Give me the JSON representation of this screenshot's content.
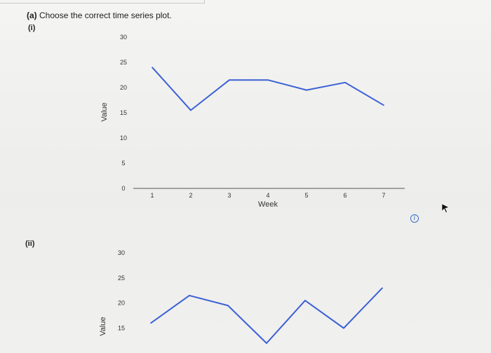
{
  "question": {
    "part_tag": "(a)",
    "text": "Choose the correct time series plot."
  },
  "options": [
    {
      "label": "(i)"
    },
    {
      "label": "(ii)"
    }
  ],
  "chart_data": [
    {
      "type": "line",
      "xlabel": "Week",
      "ylabel": "Value",
      "x": [
        1,
        2,
        3,
        4,
        5,
        6,
        7
      ],
      "y_ticks": [
        "30",
        "25",
        "20",
        "15",
        "10",
        "5",
        "0"
      ],
      "x_ticks": [
        "1",
        "2",
        "3",
        "4",
        "5",
        "6",
        "7"
      ],
      "ylim": [
        0,
        30
      ],
      "series": [
        {
          "values": [
            24,
            15.5,
            21.5,
            21.5,
            19.5,
            21,
            16.5
          ]
        }
      ],
      "grid": false,
      "line_color": "#3c61d6"
    },
    {
      "type": "line",
      "ylabel": "Value",
      "x": [
        1,
        2,
        3,
        4,
        5,
        6,
        7
      ],
      "y_ticks": [
        "30",
        "25",
        "20",
        "15"
      ],
      "ylim": [
        0,
        30
      ],
      "series": [
        {
          "values": [
            16,
            21.5,
            19.5,
            12,
            20.5,
            15,
            23
          ]
        }
      ],
      "grid": false,
      "line_color": "#3c61d6"
    }
  ],
  "icons": {
    "info": "info-icon",
    "info_glyph": "i",
    "cursor": "cursor-arrow-icon"
  }
}
